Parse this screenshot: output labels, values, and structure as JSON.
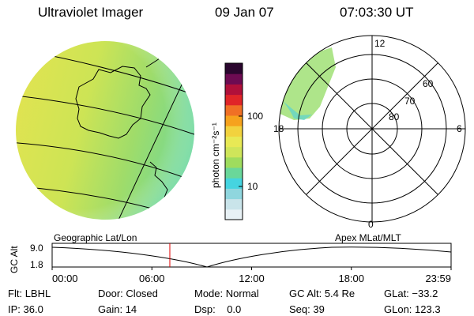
{
  "header": {
    "title": "Ultraviolet Imager",
    "date": "09 Jan 07",
    "time": "07:03:30 UT"
  },
  "colorbar": {
    "unit": "photon cm⁻²s⁻¹",
    "ticks": [
      {
        "value": 100,
        "label": "100"
      },
      {
        "value": 10,
        "label": "10"
      }
    ],
    "colors": [
      "#e8f1f5",
      "#c9e4ea",
      "#8fd6de",
      "#45d4e0",
      "#6ad79a",
      "#9fdc5e",
      "#cfe55a",
      "#e8e955",
      "#f2d23e",
      "#f6a21d",
      "#f07025",
      "#e02528",
      "#b0103a",
      "#6d0b52",
      "#2a062e"
    ]
  },
  "polar_plot": {
    "mlt_labels": [
      "12",
      "18",
      "6",
      "0"
    ],
    "mlat_labels": [
      "60",
      "70",
      "80"
    ]
  },
  "labels": {
    "geo": "Geographic Lat/Lon",
    "apex": "Apex MLat/MLT"
  },
  "orbit": {
    "ylabel": "GC Alt",
    "yticks": [
      "9.0",
      "1.8"
    ],
    "xticks": [
      "00:00",
      "06:00",
      "12:00",
      "18:00",
      "23:59"
    ],
    "current_time_fraction": 0.295
  },
  "info": {
    "filter": {
      "label": "Flt:",
      "value": "LBHL"
    },
    "ip": {
      "label": "IP:",
      "value": "36.0"
    },
    "door": {
      "label": "Door:",
      "value": "Closed"
    },
    "gain": {
      "label": "Gain:",
      "value": "14"
    },
    "mode": {
      "label": "Mode:",
      "value": "Normal"
    },
    "dsp": {
      "label": "Dsp:",
      "value": "0.0"
    },
    "gcalt": {
      "label": "GC Alt:",
      "value": "5.4 Re"
    },
    "seq": {
      "label": "Seq:",
      "value": "39"
    },
    "glat": {
      "label": "GLat:",
      "value": "−33.2"
    },
    "glon": {
      "label": "GLon:",
      "value": "123.3"
    }
  }
}
